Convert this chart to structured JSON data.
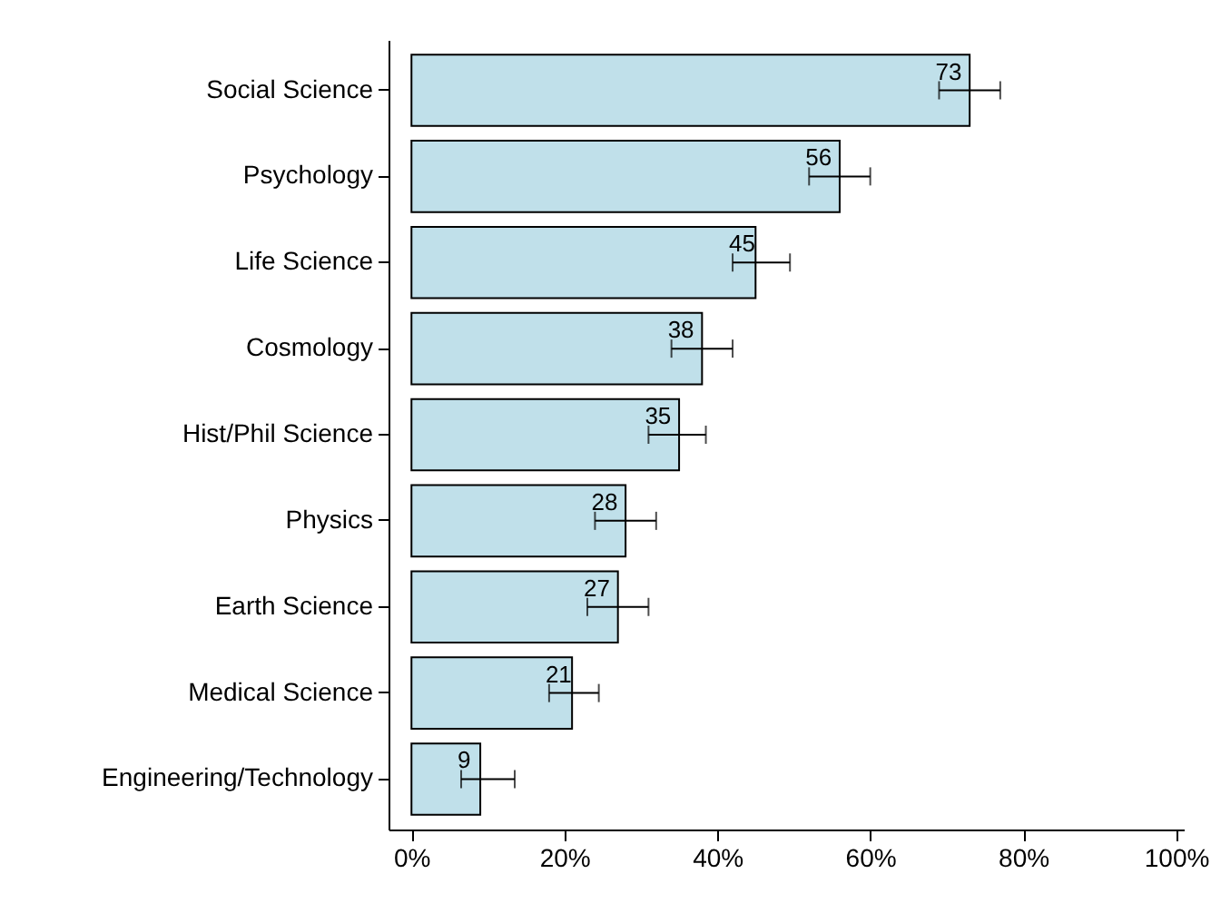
{
  "chart_data": {
    "type": "bar",
    "orientation": "horizontal",
    "categories": [
      "Social Science",
      "Psychology",
      "Life Science",
      "Cosmology",
      "Hist/Phil Science",
      "Physics",
      "Earth Science",
      "Medical Science",
      "Engineering/Technology"
    ],
    "values": [
      73,
      56,
      45,
      38,
      35,
      28,
      27,
      21,
      9
    ],
    "errors": [
      [
        69,
        77
      ],
      [
        52,
        60
      ],
      [
        42,
        49.5
      ],
      [
        34,
        42
      ],
      [
        31,
        38.5
      ],
      [
        24,
        32
      ],
      [
        23,
        31
      ],
      [
        18,
        24.5
      ],
      [
        6.5,
        13.5
      ]
    ],
    "color": "#c0e0ea",
    "xlim": [
      -3,
      101
    ],
    "xticks": [
      {
        "value": 0,
        "label": "0%"
      },
      {
        "value": 20,
        "label": "20%"
      },
      {
        "value": 40,
        "label": "40%"
      },
      {
        "value": 60,
        "label": "60%"
      },
      {
        "value": 80,
        "label": "80%"
      },
      {
        "value": 100,
        "label": "100%"
      }
    ],
    "data_labels": true
  }
}
